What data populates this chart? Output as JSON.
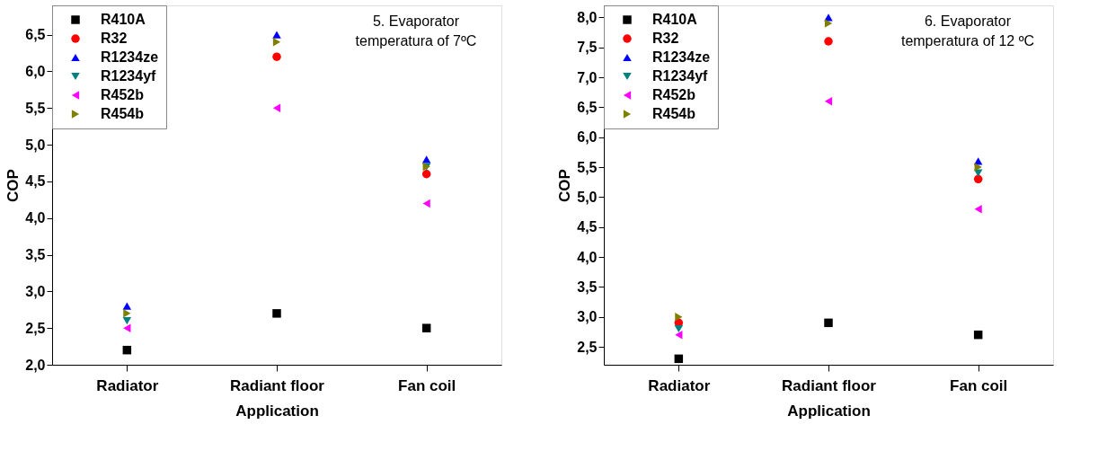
{
  "chart_data": [
    {
      "type": "scatter",
      "annotations": [
        "5. Evaporator\ntemperatura of 7ºC"
      ],
      "xlabel": "Application",
      "ylabel": "COP",
      "categories": [
        "Radiator",
        "Radiant floor",
        "Fan coil"
      ],
      "ylim": [
        2.0,
        6.9
      ],
      "yticks": [
        {
          "value": 2.0,
          "label": "2,0"
        },
        {
          "value": 2.5,
          "label": "2,5"
        },
        {
          "value": 3.0,
          "label": "3,0"
        },
        {
          "value": 3.5,
          "label": "3,5"
        },
        {
          "value": 4.0,
          "label": "4,0"
        },
        {
          "value": 4.5,
          "label": "4,5"
        },
        {
          "value": 5.0,
          "label": "5,0"
        },
        {
          "value": 5.5,
          "label": "5,5"
        },
        {
          "value": 6.0,
          "label": "6,0"
        },
        {
          "value": 6.5,
          "label": "6,5"
        }
      ],
      "legend": "top left",
      "grid": false,
      "series": [
        {
          "name": "R410A",
          "color": "#000000",
          "marker": "square",
          "values": [
            2.2,
            2.7,
            2.5
          ]
        },
        {
          "name": "R32",
          "color": "#ff0000",
          "marker": "circle",
          "values": [
            null,
            6.2,
            4.6
          ]
        },
        {
          "name": "R1234ze",
          "color": "#0000ff",
          "marker": "triangle-up",
          "values": [
            2.8,
            6.5,
            4.8
          ]
        },
        {
          "name": "R1234yf",
          "color": "#008080",
          "marker": "triangle-down",
          "values": [
            2.6,
            null,
            4.7
          ]
        },
        {
          "name": "R452b",
          "color": "#ff00ff",
          "marker": "triangle-left",
          "values": [
            2.5,
            5.5,
            4.2
          ]
        },
        {
          "name": "R454b",
          "color": "#808000",
          "marker": "triangle-right",
          "values": [
            2.7,
            6.4,
            4.7
          ]
        }
      ]
    },
    {
      "type": "scatter",
      "annotations": [
        "6. Evaporator\ntemperatura of 12 ºC"
      ],
      "xlabel": "Application",
      "ylabel": "COP",
      "categories": [
        "Radiator",
        "Radiant floor",
        "Fan coil"
      ],
      "ylim": [
        2.2,
        8.2
      ],
      "yticks": [
        {
          "value": 2.5,
          "label": "2,5"
        },
        {
          "value": 3.0,
          "label": "3,0"
        },
        {
          "value": 3.5,
          "label": "3,5"
        },
        {
          "value": 4.0,
          "label": "4,0"
        },
        {
          "value": 4.5,
          "label": "4,5"
        },
        {
          "value": 5.0,
          "label": "5,0"
        },
        {
          "value": 5.5,
          "label": "5,5"
        },
        {
          "value": 6.0,
          "label": "6,0"
        },
        {
          "value": 6.5,
          "label": "6,5"
        },
        {
          "value": 7.0,
          "label": "7,0"
        },
        {
          "value": 7.5,
          "label": "7,5"
        },
        {
          "value": 8.0,
          "label": "8,0"
        }
      ],
      "legend": "top left",
      "grid": false,
      "series": [
        {
          "name": "R410A",
          "color": "#000000",
          "marker": "square",
          "values": [
            2.3,
            2.9,
            2.7
          ]
        },
        {
          "name": "R32",
          "color": "#ff0000",
          "marker": "circle",
          "values": [
            2.9,
            7.6,
            5.3
          ]
        },
        {
          "name": "R1234ze",
          "color": "#0000ff",
          "marker": "triangle-up",
          "values": [
            null,
            8.0,
            5.6
          ]
        },
        {
          "name": "R1234yf",
          "color": "#008080",
          "marker": "triangle-down",
          "values": [
            2.8,
            null,
            5.4
          ]
        },
        {
          "name": "R452b",
          "color": "#ff00ff",
          "marker": "triangle-left",
          "values": [
            2.7,
            6.6,
            4.8
          ]
        },
        {
          "name": "R454b",
          "color": "#808000",
          "marker": "triangle-right",
          "values": [
            3.0,
            7.9,
            5.5
          ]
        }
      ]
    }
  ]
}
